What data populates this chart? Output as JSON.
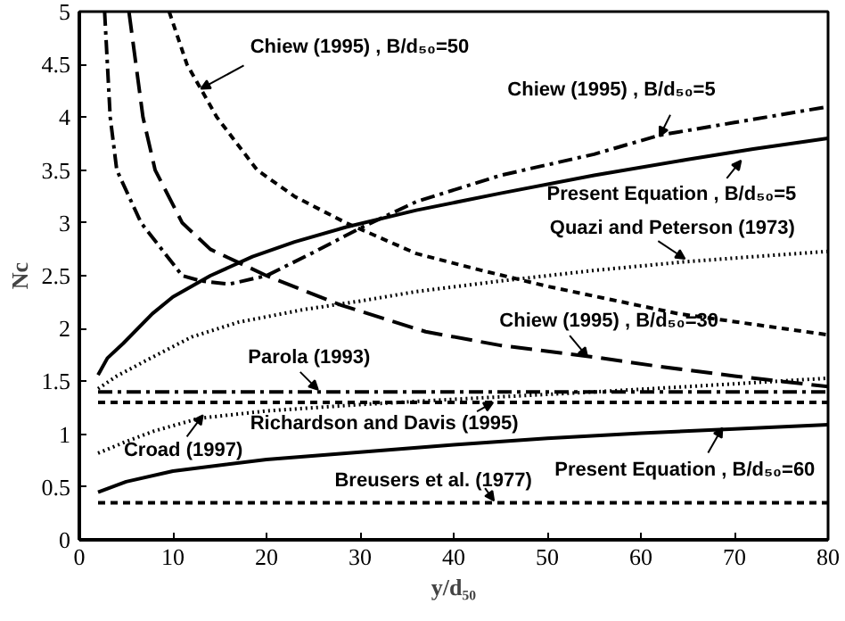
{
  "chart_data": {
    "type": "line",
    "xlabel": "y/d₅₀",
    "ylabel": "Nc",
    "xlim": [
      0,
      80
    ],
    "ylim": [
      0,
      5
    ],
    "xticks": [
      0,
      10,
      20,
      30,
      40,
      50,
      60,
      70,
      80
    ],
    "yticks": [
      0,
      0.5,
      1,
      1.5,
      2,
      2.5,
      3,
      3.5,
      4,
      4.5,
      5
    ],
    "grid": false,
    "marker": "none",
    "series": [
      {
        "color": "#000000",
        "line_style": "solid",
        "x": [
          2,
          3,
          4.7,
          7.8,
          10,
          14,
          18.5,
          23,
          28.5,
          36,
          45,
          55,
          65,
          72,
          80
        ],
        "values": [
          1.56,
          1.72,
          1.86,
          2.14,
          2.3,
          2.5,
          2.68,
          2.82,
          2.96,
          3.12,
          3.28,
          3.45,
          3.6,
          3.7,
          3.8
        ]
      },
      {
        "color": "#000000",
        "line_style": "dashdot",
        "x": [
          2.7,
          3.3,
          4,
          6.6,
          11,
          13,
          16,
          20,
          25,
          30,
          36,
          45,
          55,
          62,
          70,
          80
        ],
        "values": [
          5,
          4.0,
          3.5,
          3.0,
          2.5,
          2.45,
          2.42,
          2.5,
          2.72,
          2.95,
          3.2,
          3.45,
          3.65,
          3.83,
          3.95,
          4.1
        ]
      },
      {
        "color": "#000000",
        "line_style": "longdash",
        "x": [
          5.3,
          6.8,
          8.1,
          11,
          14,
          20,
          28,
          37,
          45,
          55,
          62,
          70,
          80
        ],
        "values": [
          5,
          4,
          3.5,
          3.0,
          2.75,
          2.5,
          2.22,
          1.97,
          1.84,
          1.73,
          1.64,
          1.55,
          1.45
        ]
      },
      {
        "color": "#000000",
        "line_style": "dashed",
        "x": [
          9.6,
          11.5,
          14.7,
          19,
          23,
          28.5,
          36,
          43,
          50,
          57,
          64,
          72,
          80
        ],
        "values": [
          5,
          4.5,
          4,
          3.5,
          3.25,
          3.0,
          2.71,
          2.55,
          2.4,
          2.27,
          2.14,
          2.04,
          1.94
        ]
      },
      {
        "color": "#000000",
        "line_style": "dotted",
        "x": [
          2,
          4,
          7.2,
          12,
          17,
          24,
          30,
          36,
          45,
          55,
          64.5,
          72,
          80
        ],
        "values": [
          1.43,
          1.55,
          1.7,
          1.92,
          2.06,
          2.18,
          2.26,
          2.35,
          2.45,
          2.55,
          2.63,
          2.68,
          2.73
        ]
      },
      {
        "color": "#000000",
        "line_style": "dotted",
        "x": [
          2,
          5,
          8,
          12.8,
          20,
          30,
          40,
          55,
          65,
          80
        ],
        "values": [
          0.82,
          0.93,
          1.03,
          1.15,
          1.22,
          1.28,
          1.33,
          1.4,
          1.45,
          1.53
        ]
      },
      {
        "color": "#000000",
        "line_style": "solid",
        "x": [
          2,
          5,
          10,
          20,
          30,
          40,
          50,
          60,
          70,
          80
        ],
        "values": [
          0.45,
          0.55,
          0.65,
          0.76,
          0.83,
          0.9,
          0.96,
          1.01,
          1.05,
          1.09
        ]
      },
      {
        "color": "#000000",
        "line_style": "dashdot",
        "x": [
          2,
          80
        ],
        "values": [
          1.4,
          1.4
        ]
      },
      {
        "color": "#000000",
        "line_style": "dashed",
        "x": [
          2,
          80
        ],
        "values": [
          1.3,
          1.3
        ]
      },
      {
        "color": "#000000",
        "line_style": "dashed",
        "x": [
          2,
          80
        ],
        "values": [
          0.35,
          0.35
        ]
      }
    ],
    "annotations": [
      {
        "text": "Chiew (1995) , B/d₅₀=50",
        "x": 13,
        "y": 4.27
      },
      {
        "text": "Chiew (1995) , B/d₅₀=5",
        "x": 62,
        "y": 3.82
      },
      {
        "text": "Present Equation , B/d₅₀=5",
        "x": 70.7,
        "y": 3.59
      },
      {
        "text": "Quazi and Peterson (1973)",
        "x": 64.7,
        "y": 2.66
      },
      {
        "text": "Chiew (1995) , B/d₅₀=30",
        "x": 54.3,
        "y": 1.73
      },
      {
        "text": "Parola (1993)",
        "x": 25.5,
        "y": 1.42
      },
      {
        "text": "Richardson and Davis (1995)",
        "x": 44.2,
        "y": 1.3
      },
      {
        "text": "Croad (1997)",
        "x": 13.2,
        "y": 1.18
      },
      {
        "text": "Breusers et al. (1977)",
        "x": 44.3,
        "y": 0.37
      },
      {
        "text": "Present Equation , B/d₅₀=60",
        "x": 68.7,
        "y": 1.06
      }
    ]
  }
}
